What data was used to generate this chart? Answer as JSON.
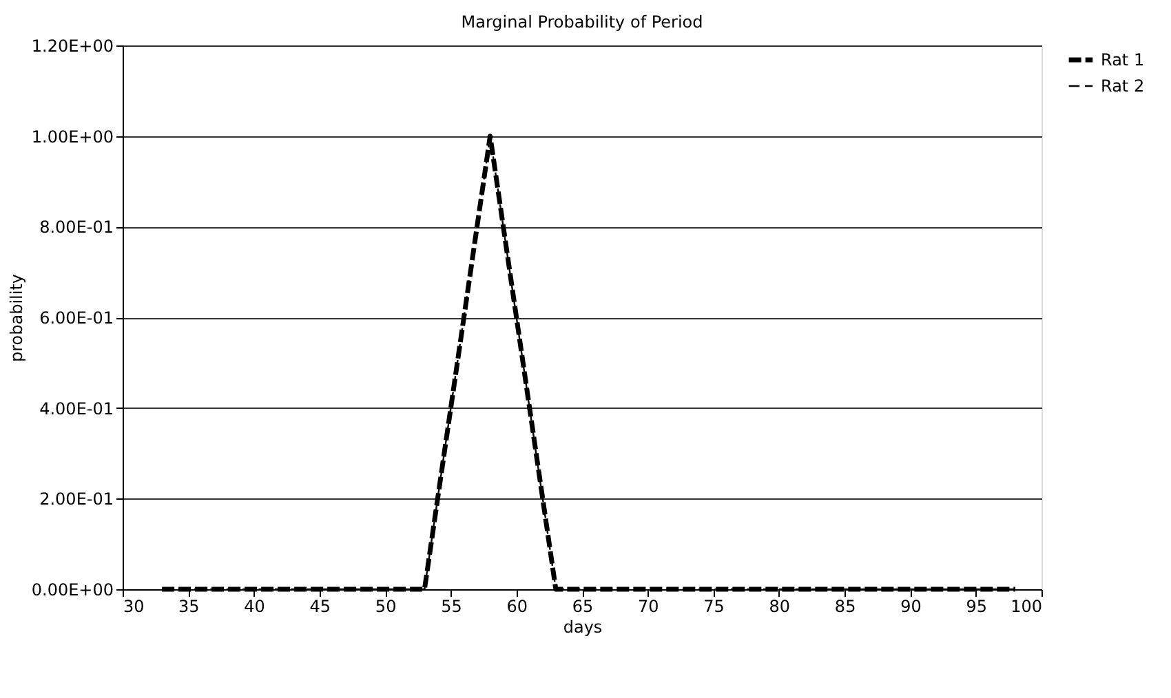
{
  "chart_data": {
    "type": "line",
    "title": "Marginal Probability of Period",
    "xlabel": "days",
    "ylabel": "probability",
    "x": [
      33,
      38,
      43,
      48,
      53,
      58,
      63,
      68,
      73,
      78,
      83,
      88,
      93,
      98
    ],
    "series": [
      {
        "name": "Rat 1",
        "color": "#000000",
        "line_style": "dashed",
        "values": [
          0,
          0,
          0,
          0,
          0,
          1,
          0,
          0,
          0,
          0,
          0,
          0,
          0,
          0
        ]
      },
      {
        "name": "Rat 2",
        "color": "#000000",
        "line_style": "dashed",
        "values": [
          0,
          0,
          0,
          0,
          0,
          1,
          0,
          0,
          0,
          0,
          0,
          0,
          0,
          0
        ]
      }
    ],
    "xlim": [
      30,
      100
    ],
    "xticks": [
      30,
      35,
      40,
      45,
      50,
      55,
      60,
      65,
      70,
      75,
      80,
      85,
      90,
      95,
      100
    ],
    "ylim": [
      0,
      1.2
    ],
    "yticks": [
      {
        "value": 0,
        "label": "0.00E+00"
      },
      {
        "value": 0.2,
        "label": "2.00E-01"
      },
      {
        "value": 0.4,
        "label": "4.00E-01"
      },
      {
        "value": 0.6,
        "label": "6.00E-01"
      },
      {
        "value": 0.8,
        "label": "8.00E-01"
      },
      {
        "value": 1.0,
        "label": "1.00E+00"
      },
      {
        "value": 1.2,
        "label": "1.20E+00"
      }
    ],
    "grid": "y",
    "legend": "right",
    "marker": "none"
  }
}
